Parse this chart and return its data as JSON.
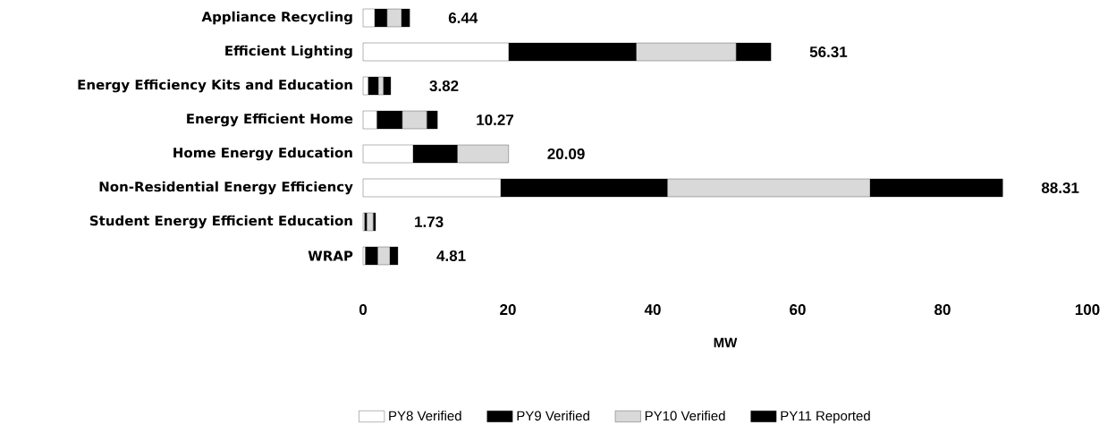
{
  "chart_data": {
    "type": "bar",
    "orientation": "horizontal",
    "stacked": true,
    "xlabel": "MW",
    "legend": "bottom",
    "categories": [
      "Appliance Recycling",
      "Efficient Lighting",
      "Energy Efficiency Kits and Education",
      "Energy Efficient Home",
      "Home Energy Education",
      "Non-Residential Energy Efficiency",
      "Student Energy Efficient Education",
      "WRAP"
    ],
    "series": [
      {
        "name": "PY8 Verified",
        "color": "#ffffff",
        "values": [
          1.6,
          20.1,
          0.7,
          1.9,
          6.9,
          19.0,
          0.2,
          0.3
        ]
      },
      {
        "name": "PY9 Verified",
        "color": "#000000",
        "values": [
          1.7,
          17.6,
          1.4,
          3.5,
          6.1,
          23.0,
          0.3,
          1.7
        ]
      },
      {
        "name": "PY10 Verified",
        "color": "#d9d9d9",
        "values": [
          2.0,
          13.8,
          0.7,
          3.4,
          7.09,
          28.0,
          0.9,
          1.7
        ]
      },
      {
        "name": "PY11 Reported",
        "color": "#000000",
        "values": [
          1.14,
          4.81,
          1.02,
          1.47,
          0,
          18.31,
          0.33,
          1.11
        ]
      }
    ],
    "totals": [
      "6.44",
      "56.31",
      "3.82",
      "10.27",
      "20.09",
      "88.31",
      "1.73",
      "4.81"
    ],
    "xlim": [
      0,
      100
    ],
    "xticks": [
      0,
      20,
      40,
      60,
      80,
      100
    ]
  }
}
